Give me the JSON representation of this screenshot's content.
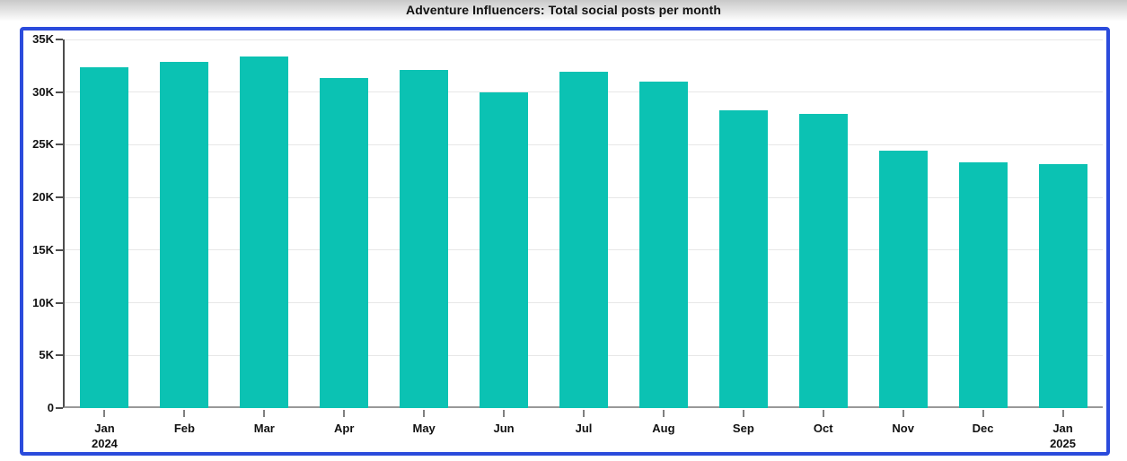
{
  "page": {
    "title": "Adventure Influencers: Total social posts per month"
  },
  "chart_data": {
    "type": "bar",
    "title": "Adventure Influencers: Total social posts per month",
    "categories": [
      "Jan",
      "Feb",
      "Mar",
      "Apr",
      "May",
      "Jun",
      "Jul",
      "Aug",
      "Sep",
      "Oct",
      "Nov",
      "Dec",
      "Jan"
    ],
    "category_sublabels": [
      "2024",
      "",
      "",
      "",
      "",
      "",
      "",
      "",
      "",
      "",
      "",
      "",
      "2025"
    ],
    "values": [
      32400,
      32900,
      33400,
      31300,
      32100,
      30000,
      31900,
      31000,
      28300,
      27900,
      24400,
      23300,
      23200
    ],
    "xlabel": "",
    "ylabel": "",
    "ylim": [
      0,
      35000
    ],
    "ytick_interval": 5000,
    "ytick_labels": [
      "0",
      "5K",
      "10K",
      "15K",
      "20K",
      "25K",
      "30K",
      "35K"
    ],
    "grid": "horizontal-major-only",
    "legend": "none",
    "bar_color": "#0bc2b3",
    "highlight_border_color": "#2b4bdc",
    "axis_text_color": "#111111",
    "gridline_color": "#e7e7e7"
  }
}
